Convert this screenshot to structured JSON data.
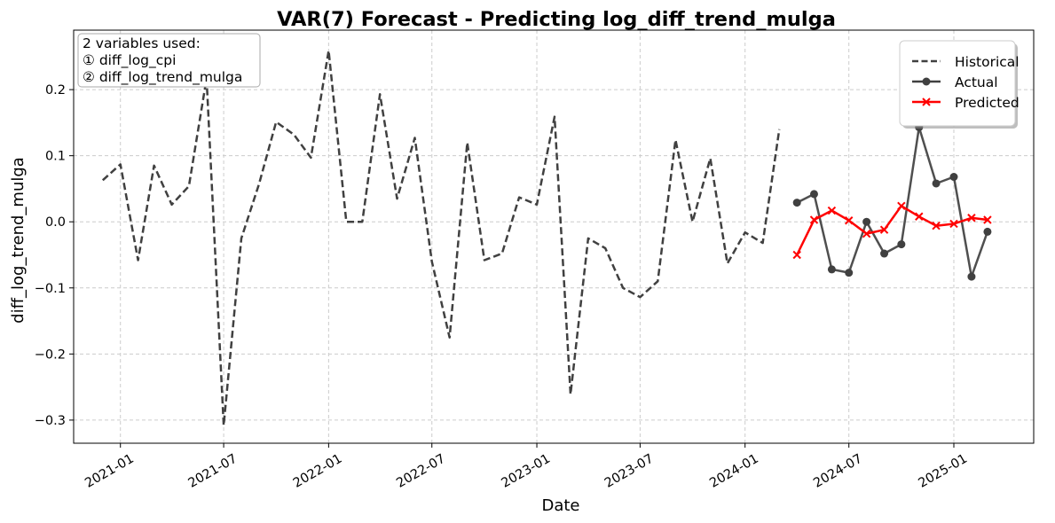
{
  "chart_data": {
    "type": "line",
    "title": "VAR(7) Forecast - Predicting log_diff_trend_mulga",
    "xlabel": "Date",
    "ylabel": "diff_log_trend_mulga",
    "ylim": [
      -0.335,
      0.29
    ],
    "xlim": [
      "2020-10-11",
      "2025-05-21"
    ],
    "grid": true,
    "legend_position": "top-right",
    "x_ticks": [
      "2021-01",
      "2021-07",
      "2022-01",
      "2022-07",
      "2023-01",
      "2023-07",
      "2024-01",
      "2024-07",
      "2025-01"
    ],
    "y_ticks": [
      -0.3,
      -0.2,
      -0.1,
      0.0,
      0.1,
      0.2
    ],
    "y_tick_labels": [
      "−0.3",
      "−0.2",
      "−0.1",
      "0.0",
      "0.1",
      "0.2"
    ],
    "annotation": [
      "2 variables used:",
      "① diff_log_cpi",
      "② diff_log_trend_mulga"
    ],
    "series": [
      {
        "name": "Historical",
        "color": "#404040",
        "style": "dashed",
        "x": [
          "2020-12-01",
          "2021-01-01",
          "2021-02-01",
          "2021-03-01",
          "2021-04-01",
          "2021-05-01",
          "2021-06-01",
          "2021-07-01",
          "2021-08-01",
          "2021-09-01",
          "2021-10-01",
          "2021-11-01",
          "2021-12-01",
          "2022-01-01",
          "2022-02-01",
          "2022-03-01",
          "2022-04-01",
          "2022-05-01",
          "2022-06-01",
          "2022-07-01",
          "2022-08-01",
          "2022-09-01",
          "2022-10-01",
          "2022-11-01",
          "2022-12-01",
          "2023-01-01",
          "2023-02-01",
          "2023-03-01",
          "2023-04-01",
          "2023-05-01",
          "2023-06-01",
          "2023-07-01",
          "2023-08-01",
          "2023-09-01",
          "2023-10-01",
          "2023-11-01",
          "2023-12-01",
          "2024-01-01",
          "2024-02-01",
          "2024-03-01"
        ],
        "values": [
          0.063,
          0.087,
          -0.058,
          0.085,
          0.026,
          0.054,
          0.217,
          -0.308,
          -0.025,
          0.057,
          0.151,
          0.132,
          0.097,
          0.259,
          0.0,
          0.0,
          0.193,
          0.035,
          0.127,
          -0.06,
          -0.175,
          0.12,
          -0.058,
          -0.048,
          0.037,
          0.026,
          0.159,
          -0.261,
          -0.025,
          -0.04,
          -0.1,
          -0.114,
          -0.09,
          0.124,
          0.0,
          0.096,
          -0.063,
          -0.016,
          -0.032,
          0.14
        ]
      },
      {
        "name": "Actual",
        "color": "#404040",
        "style": "solid-marker-circle",
        "x": [
          "2024-04-01",
          "2024-05-01",
          "2024-06-01",
          "2024-07-01",
          "2024-08-01",
          "2024-09-01",
          "2024-10-01",
          "2024-11-01",
          "2024-12-01",
          "2025-01-01",
          "2025-02-01",
          "2025-03-01"
        ],
        "values": [
          0.029,
          0.042,
          -0.072,
          -0.077,
          0.0,
          -0.048,
          -0.034,
          0.143,
          0.058,
          0.068,
          -0.083,
          -0.015
        ]
      },
      {
        "name": "Predicted",
        "color": "#ff0000",
        "style": "solid-marker-x",
        "x": [
          "2024-04-01",
          "2024-05-01",
          "2024-06-01",
          "2024-07-01",
          "2024-08-01",
          "2024-09-01",
          "2024-10-01",
          "2024-11-01",
          "2024-12-01",
          "2025-01-01",
          "2025-02-01",
          "2025-03-01"
        ],
        "values": [
          -0.05,
          0.003,
          0.017,
          0.002,
          -0.018,
          -0.012,
          0.024,
          0.008,
          -0.006,
          -0.003,
          0.006,
          0.003
        ]
      }
    ]
  }
}
